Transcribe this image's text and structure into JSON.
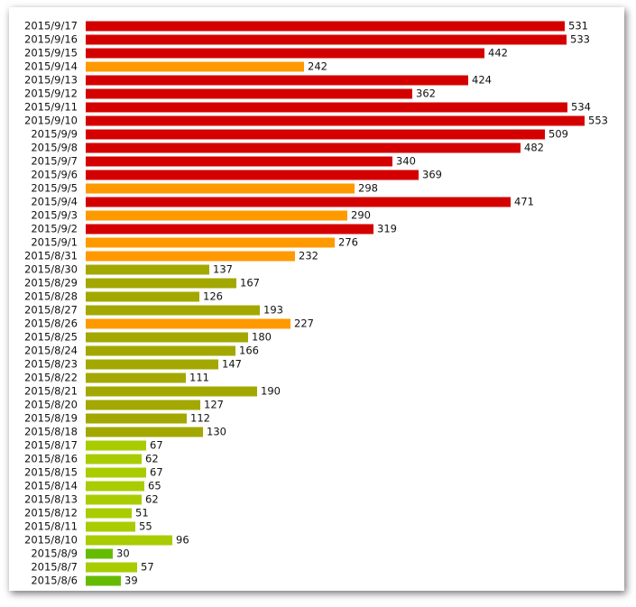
{
  "chart_data": {
    "type": "bar",
    "orientation": "horizontal",
    "categories": [
      "2015/9/17",
      "2015/9/16",
      "2015/9/15",
      "2015/9/14",
      "2015/9/13",
      "2015/9/12",
      "2015/9/11",
      "2015/9/10",
      "2015/9/9",
      "2015/9/8",
      "2015/9/7",
      "2015/9/6",
      "2015/9/5",
      "2015/9/4",
      "2015/9/3",
      "2015/9/2",
      "2015/9/1",
      "2015/8/31",
      "2015/8/30",
      "2015/8/29",
      "2015/8/28",
      "2015/8/27",
      "2015/8/26",
      "2015/8/25",
      "2015/8/24",
      "2015/8/23",
      "2015/8/22",
      "2015/8/21",
      "2015/8/20",
      "2015/8/19",
      "2015/8/18",
      "2015/8/17",
      "2015/8/16",
      "2015/8/15",
      "2015/8/14",
      "2015/8/13",
      "2015/8/12",
      "2015/8/11",
      "2015/8/10",
      "2015/8/9",
      "2015/8/7",
      "2015/8/6"
    ],
    "values": [
      531,
      533,
      442,
      242,
      424,
      362,
      534,
      553,
      509,
      482,
      340,
      369,
      298,
      471,
      290,
      319,
      276,
      232,
      137,
      167,
      126,
      193,
      227,
      180,
      166,
      147,
      111,
      190,
      127,
      112,
      130,
      67,
      62,
      67,
      65,
      62,
      51,
      55,
      96,
      30,
      57,
      39
    ],
    "colors": [
      "#d40000",
      "#d40000",
      "#d40000",
      "#ff9900",
      "#d40000",
      "#d40000",
      "#d40000",
      "#d40000",
      "#d40000",
      "#d40000",
      "#d40000",
      "#d40000",
      "#ff9900",
      "#d40000",
      "#ff9900",
      "#d40000",
      "#ff9900",
      "#ff9900",
      "#a3a800",
      "#a3a800",
      "#a3a800",
      "#a3a800",
      "#ff9900",
      "#a3a800",
      "#a3a800",
      "#a3a800",
      "#a3a800",
      "#a3a800",
      "#a3a800",
      "#a3a800",
      "#a3a800",
      "#a8cc00",
      "#a8cc00",
      "#a8cc00",
      "#a8cc00",
      "#a8cc00",
      "#a8cc00",
      "#a8cc00",
      "#a8cc00",
      "#66bb00",
      "#a8cc00",
      "#66bb00"
    ]
  }
}
